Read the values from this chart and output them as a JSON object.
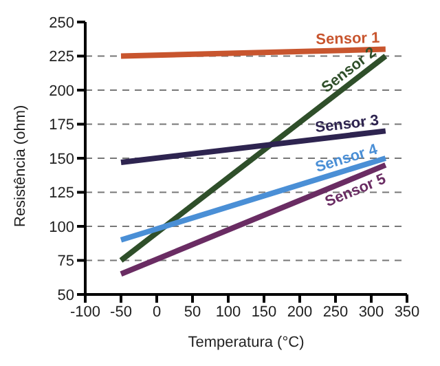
{
  "chart_data": {
    "type": "line",
    "xlabel": "Temperatura (°C)",
    "ylabel": "Resistência (ohm)",
    "x": [
      -50,
      320
    ],
    "series": [
      {
        "name": "Sensor 1",
        "color": "#c8552e",
        "values": [
          225,
          230
        ]
      },
      {
        "name": "Sensor 2",
        "color": "#2f4f2a",
        "values": [
          75,
          225
        ]
      },
      {
        "name": "Sensor 3",
        "color": "#2e2450",
        "values": [
          147,
          170
        ]
      },
      {
        "name": "Sensor 4",
        "color": "#4a8fd6",
        "values": [
          90,
          150
        ]
      },
      {
        "name": "Sensor 5",
        "color": "#6a2c63",
        "values": [
          65,
          145
        ]
      }
    ],
    "xlim": [
      -100,
      350
    ],
    "xticks": [
      -100,
      -50,
      0,
      50,
      100,
      150,
      200,
      250,
      300,
      350
    ],
    "ylim": [
      50,
      250
    ],
    "yticks": [
      50,
      75,
      100,
      125,
      150,
      175,
      200,
      225,
      250
    ],
    "grid": "y",
    "legend": false,
    "marker": "none",
    "line_style": "solid"
  }
}
